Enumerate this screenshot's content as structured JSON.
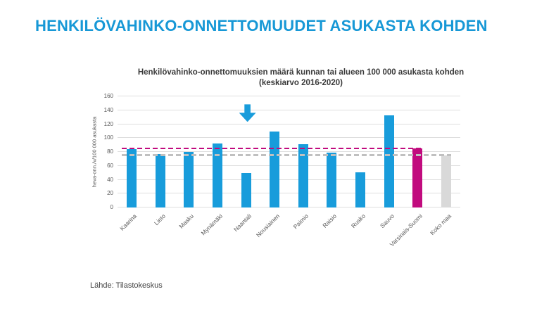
{
  "page": {
    "title": "HENKILÖVAHINKO-ONNETTOMUUDET ASUKASTA KOHDEN",
    "source": "Lähde: Tilastokeskus"
  },
  "colors": {
    "title_blue": "#1798d6",
    "bar_blue": "#189cdb",
    "highlight_magenta": "#c10b7e",
    "bar_gray": "#d9d9d9",
    "ref_gray": "#c0c0c0",
    "grid": "#dedede",
    "axis_text": "#595959"
  },
  "chart_data": {
    "type": "bar",
    "title": "Henkilövahinko-onnettomuuksien määrä kunnan tai alueen 100 000 asukasta kohden",
    "subtitle": "(keskiarvo 2016-2020)",
    "ylabel": "heva-onn./v/100 000 asukasta",
    "xlabel": "",
    "ylim": [
      0,
      160
    ],
    "ytick_step": 20,
    "grid": true,
    "legend": "none",
    "categories": [
      "Kaarina",
      "Lieto",
      "Masku",
      "Mynämäki",
      "Naantali",
      "Nousiainen",
      "Paimio",
      "Raisio",
      "Rusko",
      "Sauvo",
      "Varsinais-Suomi",
      "Koko maa"
    ],
    "values": [
      84,
      77,
      80,
      92,
      50,
      109,
      91,
      79,
      51,
      133,
      85,
      75
    ],
    "bar_colors": [
      "#189cdb",
      "#189cdb",
      "#189cdb",
      "#189cdb",
      "#189cdb",
      "#189cdb",
      "#189cdb",
      "#189cdb",
      "#189cdb",
      "#189cdb",
      "#c10b7e",
      "#d9d9d9"
    ],
    "reference_lines": [
      {
        "value": 85,
        "color": "#c10b7e",
        "style": "dashed",
        "end_category": "Varsinais-Suomi"
      },
      {
        "value": 75,
        "color": "#c0c0c0",
        "style": "dashed",
        "end_category": "Koko maa"
      }
    ],
    "annotation_arrow": {
      "shape": "down-arrow",
      "target_category": "Naantali",
      "color": "#189cdb"
    }
  }
}
